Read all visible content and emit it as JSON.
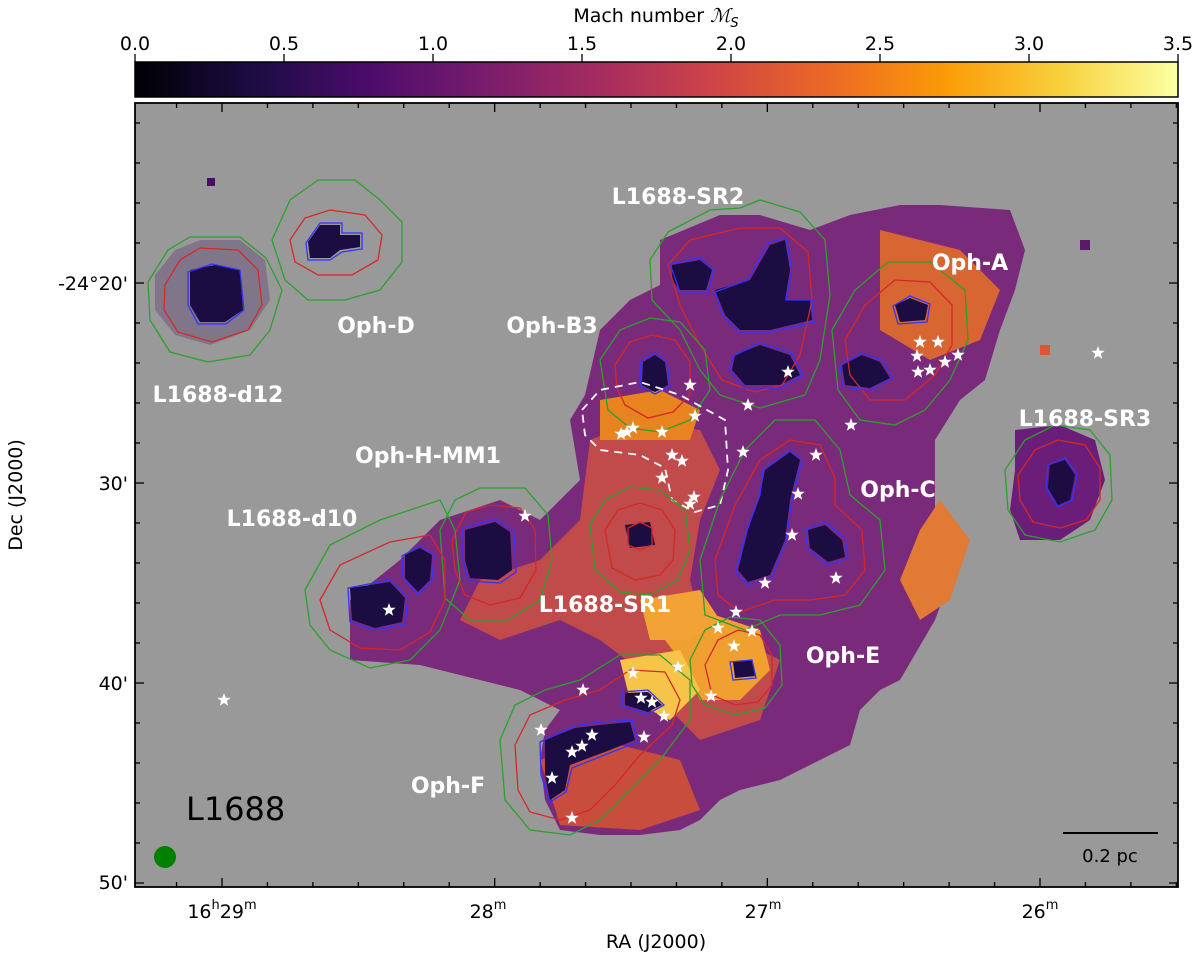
{
  "chart_data": {
    "type": "heatmap",
    "title": "",
    "colorbar": {
      "label": "Mach number ℳS",
      "label_main": "Mach number ",
      "label_symbol": "ℳ",
      "label_sub": "S",
      "colormap": "inferno",
      "range": [
        0.0,
        3.5
      ],
      "ticks": [
        "0.0",
        "0.5",
        "1.0",
        "1.5",
        "2.0",
        "2.5",
        "3.0",
        "3.5"
      ],
      "stops": [
        "#000004",
        "#1b0c41",
        "#4a0c6b",
        "#781c6d",
        "#a52c60",
        "#cf4446",
        "#ed6925",
        "#fb9b06",
        "#f7d13d",
        "#fcffa4"
      ]
    },
    "xaxis": {
      "label": "RA (J2000)",
      "ticks": [
        {
          "main": "16",
          "sup1": "h",
          "mid": "29",
          "sup2": "m"
        },
        {
          "main": "28",
          "sup2": "m"
        },
        {
          "main": "27",
          "sup2": "m"
        },
        {
          "main": "26",
          "sup2": "m"
        }
      ]
    },
    "yaxis": {
      "label": "Dec (J2000)",
      "ticks": [
        "-24°20'",
        "30'",
        "40'",
        "50'"
      ]
    },
    "panel_name": "L1688",
    "scale_bar": "0.2 pc",
    "beam_color": "#008000",
    "background_color": "#999999",
    "contour_colors": {
      "green": "#2ca02c",
      "red": "#d62728",
      "blue": "#3333ff"
    },
    "regions": [
      "L1688-SR2",
      "Oph-A",
      "Oph-D",
      "Oph-B3",
      "L1688-d12",
      "L1688-SR3",
      "Oph-H-MM1",
      "Oph-C",
      "L1688-d10",
      "L1688-SR1",
      "Oph-E",
      "Oph-F"
    ]
  }
}
